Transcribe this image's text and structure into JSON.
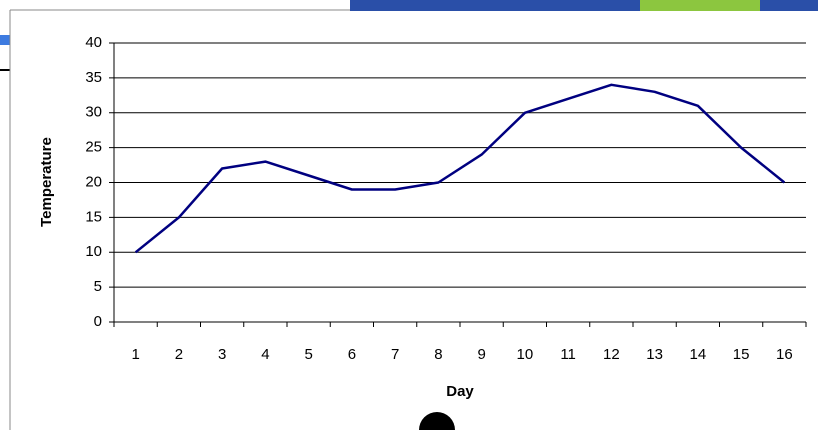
{
  "chart_data": {
    "type": "line",
    "x_label": "Day",
    "y_label": "Temperature",
    "categories": [
      "1",
      "2",
      "3",
      "4",
      "5",
      "6",
      "7",
      "8",
      "9",
      "10",
      "11",
      "12",
      "13",
      "14",
      "15",
      "16"
    ],
    "values": [
      10,
      15,
      22,
      23,
      21,
      19,
      19,
      20,
      24,
      30,
      32,
      34,
      33,
      31,
      25,
      20
    ],
    "color": "#000080",
    "ylim": [
      0,
      40
    ],
    "yticks": [
      0,
      5,
      10,
      15,
      20,
      25,
      30,
      35,
      40
    ],
    "grid": true
  }
}
